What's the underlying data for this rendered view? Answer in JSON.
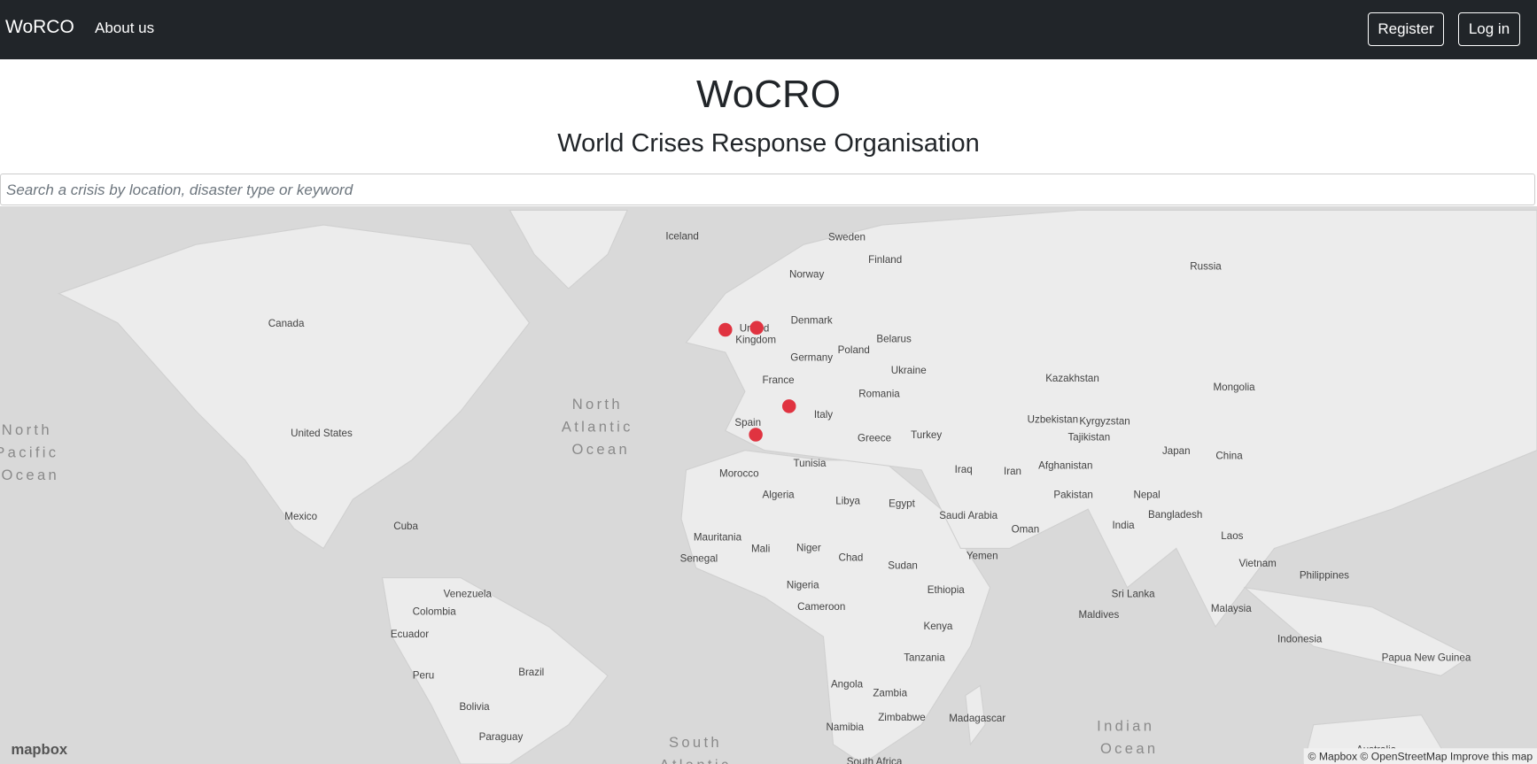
{
  "nav": {
    "brand": "WoRCO",
    "links": [
      "About us"
    ],
    "buttons": [
      "Register",
      "Log in"
    ]
  },
  "header": {
    "title": "WoCRO",
    "subtitle": "World Crises Response Organisation"
  },
  "search": {
    "placeholder": "Search a crisis by location, disaster type or keyword"
  },
  "map": {
    "labels": [
      "Iceland",
      "Sweden",
      "Finland",
      "Norway",
      "Russia",
      "Canada",
      "Denmark",
      "United Kingdom",
      "Belarus",
      "Poland",
      "Germany",
      "Ukraine",
      "Kazakhstan",
      "Mongolia",
      "France",
      "Romania",
      "Italy",
      "Uzbekistan",
      "Kyrgyzstan",
      "Spain",
      "Turkey",
      "Tajikistan",
      "United States",
      "Greece",
      "Japan",
      "China",
      "Tunisia",
      "Iraq",
      "Iran",
      "Afghanistan",
      "Morocco",
      "Algeria",
      "Libya",
      "Egypt",
      "Pakistan",
      "Nepal",
      "Saudi Arabia",
      "Bangladesh",
      "Mexico",
      "Cuba",
      "Oman",
      "India",
      "Laos",
      "Mauritania",
      "Mali",
      "Niger",
      "Chad",
      "Senegal",
      "Sudan",
      "Yemen",
      "Vietnam",
      "Philippines",
      "Ethiopia",
      "Nigeria",
      "Venezuela",
      "Sri Lanka",
      "Cameroon",
      "Malaysia",
      "Colombia",
      "Kenya",
      "Maldives",
      "Ecuador",
      "Indonesia",
      "Papua New Guinea",
      "Tanzania",
      "Peru",
      "Brazil",
      "Angola",
      "Zambia",
      "Bolivia",
      "Zimbabwe",
      "Madagascar",
      "Namibia",
      "Paraguay",
      "South Africa",
      "Australia"
    ],
    "oceans": [
      "North Atlantic Ocean",
      "North Pacific Ocean",
      "Indian Ocean",
      "South Atlantic Ocean"
    ],
    "logo": "mapbox",
    "attribution": "© Mapbox © OpenStreetMap Improve this map"
  }
}
